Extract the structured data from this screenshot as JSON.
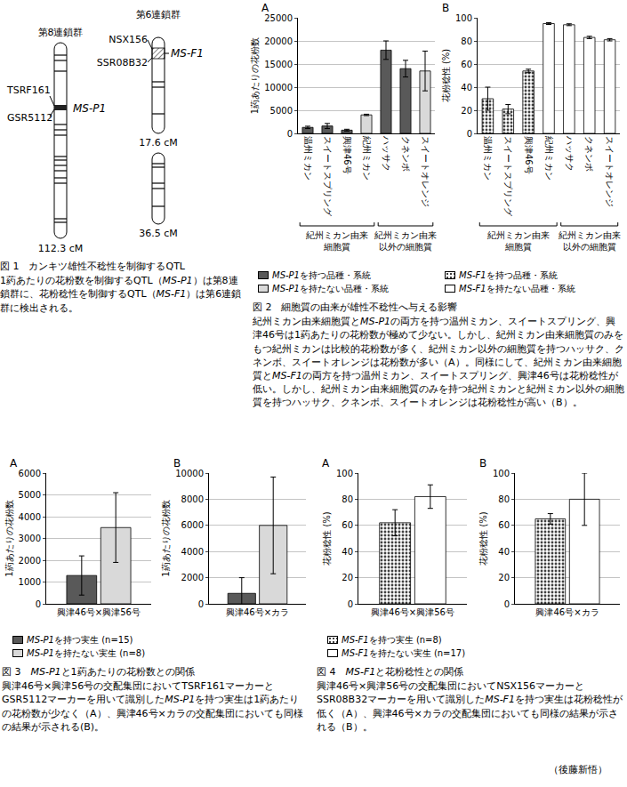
{
  "figure1": {
    "linkage_groups": [
      {
        "name": "第8連鎖群",
        "markers": [
          "TSRF161",
          "GSR5112"
        ],
        "qtl": "MS-P1",
        "lengths": [
          "112.3 cM"
        ]
      },
      {
        "name": "第6連鎖群",
        "markers": [
          "NSX156",
          "SSR08B32"
        ],
        "qtl": "MS-F1",
        "lengths": [
          "17.6 cM",
          "36.5 cM"
        ]
      }
    ]
  },
  "chart_data": [
    {
      "type": "bar",
      "panel": "A",
      "ylabel": "1葯あたりの花粉数",
      "categories": [
        "温州ミカン",
        "スイートスプリング",
        "興津46号",
        "紀州ミカン",
        "ハッサク",
        "クネンボ",
        "スイートオレンジ"
      ],
      "series": [
        {
          "name": "MS-P1を持つ品種・系統",
          "color": "#595959",
          "marker": "solid",
          "values": [
            1300,
            1600,
            700,
            null,
            18000,
            14000,
            null
          ],
          "errors": [
            250,
            550,
            200,
            null,
            2000,
            1800,
            null
          ]
        },
        {
          "name": "MS-P1を持たない品種・系統",
          "color": "#d9d9d9",
          "marker": "solid",
          "values": [
            null,
            null,
            null,
            4000,
            null,
            null,
            13500
          ],
          "errors": [
            null,
            null,
            null,
            150,
            null,
            null,
            4300
          ]
        }
      ],
      "groups": [
        {
          "label": [
            "紀州ミカン由来",
            "細胞質"
          ],
          "members": [
            "温州ミカン",
            "スイートスプリング",
            "興津46号",
            "紀州ミカン"
          ]
        },
        {
          "label": [
            "紀州ミカン由来",
            "以外の細胞質"
          ],
          "members": [
            "ハッサク",
            "クネンボ",
            "スイートオレンジ"
          ]
        }
      ],
      "ylim": [
        0,
        25000
      ],
      "yticks": [
        0,
        5000,
        10000,
        15000,
        20000,
        25000
      ],
      "grid": true
    },
    {
      "type": "bar",
      "panel": "B",
      "ylabel": "花粉稔性 (%)",
      "categories": [
        "温州ミカン",
        "スイートスプリング",
        "興津46号",
        "紀州ミカン",
        "ハッサク",
        "クネンボ",
        "スイートオレンジ"
      ],
      "series": [
        {
          "name": "MS-F1を持つ品種・系統",
          "color": "#404040",
          "marker": "dots",
          "values": [
            30,
            21,
            54,
            null,
            null,
            null,
            null
          ],
          "errors": [
            10,
            4,
            1.5,
            null,
            null,
            null,
            null
          ]
        },
        {
          "name": "MS-F1を持たない品種・系統",
          "color": "#ffffff",
          "marker": "solid",
          "values": [
            null,
            null,
            null,
            95,
            94,
            83,
            81
          ],
          "errors": [
            null,
            null,
            null,
            0.8,
            0.8,
            1,
            1
          ]
        }
      ],
      "groups": [
        {
          "label": [
            "紀州ミカン由来",
            "細胞質"
          ],
          "members": [
            "温州ミカン",
            "スイートスプリング",
            "興津46号",
            "紀州ミカン"
          ]
        },
        {
          "label": [
            "紀州ミカン由来",
            "以外の細胞質"
          ],
          "members": [
            "ハッサク",
            "クネンボ",
            "スイートオレンジ"
          ]
        }
      ],
      "ylim": [
        0,
        100
      ],
      "yticks": [
        0,
        20,
        40,
        60,
        80,
        100
      ],
      "grid": true
    },
    {
      "type": "bar",
      "panel": "A",
      "ylabel": "1葯あたりの花粉数",
      "categories": [
        "興津46号×興津56号"
      ],
      "series": [
        {
          "name": "MS-P1を持つ実生 (n=15)",
          "color": "#595959",
          "marker": "solid",
          "values": [
            1300
          ],
          "errors": [
            900
          ]
        },
        {
          "name": "MS-P1を持たない実生 (n=8)",
          "color": "#d9d9d9",
          "marker": "solid",
          "values": [
            3500
          ],
          "errors": [
            1600
          ]
        }
      ],
      "ylim": [
        0,
        6000
      ],
      "yticks": [
        0,
        1000,
        2000,
        3000,
        4000,
        5000,
        6000
      ],
      "grid": true
    },
    {
      "type": "bar",
      "panel": "B",
      "ylabel": "1葯あたりの花粉数",
      "categories": [
        "興津46号×カラ"
      ],
      "series": [
        {
          "color": "#595959",
          "marker": "solid",
          "values": [
            800
          ],
          "errors": [
            1200
          ]
        },
        {
          "color": "#d9d9d9",
          "marker": "solid",
          "values": [
            6000
          ],
          "errors": [
            3700
          ]
        }
      ],
      "ylim": [
        0,
        10000
      ],
      "yticks": [
        0,
        2000,
        4000,
        6000,
        8000,
        10000
      ],
      "grid": true
    },
    {
      "type": "bar",
      "panel": "A",
      "ylabel": "花粉稔性 (%)",
      "categories": [
        "興津46号×興津56号"
      ],
      "series": [
        {
          "name": "MS-F1を持つ実生 (n=8)",
          "color": "#404040",
          "marker": "dots",
          "values": [
            62
          ],
          "errors": [
            10
          ]
        },
        {
          "name": "MS-F1を持たない実生 (n=17)",
          "color": "#ffffff",
          "marker": "solid",
          "values": [
            82
          ],
          "errors": [
            9
          ]
        }
      ],
      "ylim": [
        0,
        100
      ],
      "yticks": [
        0,
        20,
        40,
        60,
        80,
        100
      ],
      "grid": true
    },
    {
      "type": "bar",
      "panel": "B",
      "ylabel": "花粉稔性 (%)",
      "categories": [
        "興津46号×カラ"
      ],
      "series": [
        {
          "color": "#404040",
          "marker": "dots",
          "values": [
            65
          ],
          "errors": [
            4
          ]
        },
        {
          "color": "#ffffff",
          "marker": "solid",
          "values": [
            80
          ],
          "errors": [
            20
          ]
        }
      ],
      "ylim": [
        0,
        100
      ],
      "yticks": [
        0,
        20,
        40,
        60,
        80,
        100
      ],
      "grid": true
    }
  ],
  "captions": [
    {
      "title": "図 1　カンキツ雄性不稔性を制御するQTL",
      "text": "1葯あたりの花粉数を制御するQTL（MS-P1）は第8連鎖群に、花粉稔性を制御するQTL（MS-F1）は第6連鎖群に検出される。"
    },
    {
      "title": "図 2　細胞質の由来が雄性不稔性へ与える影響",
      "text": "紀州ミカン由来細胞質とMS-P1の両方を持つ温州ミカン、スイートスプリング、興津46号は1葯あたりの花粉数が極めて少ない。しかし、紀州ミカン由来細胞質のみをもつ紀州ミカンは比較的花粉数が多く、紀州ミカン以外の細胞質を持つハッサク、クネンボ、スイートオレンジは花粉数が多い（A）。同様にして、紀州ミカン由来細胞質とMS-F1の両方を持つ温州ミカン、スイートスプリング、興津46号は花粉稔性が低い。しかし、紀州ミカン由来細胞質のみを持つ紀州ミカンと紀州ミカン以外の細胞質を持つハッサク、クネンボ、スイートオレンジは花粉稔性が高い（B）。"
    },
    {
      "title": "図 3　MS-P1と1葯あたりの花粉数との関係",
      "text": "興津46号×興津56号の交配集団においてTSRF161マーカーとGSR5112マーカーを用いて識別したMS-P1を持つ実生は1葯あたりの花粉数が少なく（A）、興津46号×カラの交配集団においても同様の結果が示される(B)。"
    },
    {
      "title": "図 4　MS-F1と花粉稔性との関係",
      "text": "興津46号×興津56号の交配集団においてNSX156マーカーとSSR08B32マーカーを用いて識別したMS-F1を持つ実生は花粉稔性が低く（A）、興津46号×カラの交配集団においても同様の結果が示される（B）。"
    }
  ],
  "credit": "（後藤新悟）"
}
